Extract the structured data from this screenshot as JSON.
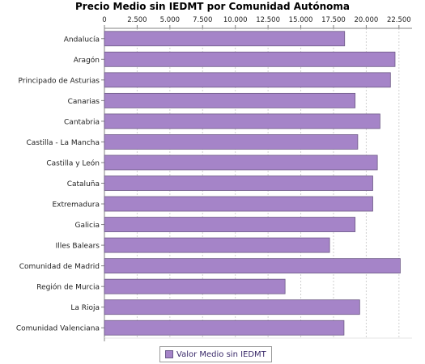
{
  "chart_data": {
    "type": "bar",
    "orientation": "horizontal",
    "title": "Precio Medio sin IEDMT por Comunidad Autónoma",
    "xlabel": "",
    "ylabel": "",
    "xlim": [
      0,
      23500
    ],
    "ticks": [
      "0",
      "2.500",
      "5.000",
      "7.500",
      "10.000",
      "12.500",
      "15.000",
      "17.500",
      "20.000",
      "22.500"
    ],
    "tick_values": [
      0,
      2500,
      5000,
      7500,
      10000,
      12500,
      15000,
      17500,
      20000,
      22500
    ],
    "tick_position": "top",
    "grid": "vertical-dashed",
    "legend_position": "bottom",
    "categories": [
      "Andalucía",
      "Aragón",
      "Principado de Asturias",
      "Canarias",
      "Cantabria",
      "Castilla - La Mancha",
      "Castilla y León",
      "Cataluña",
      "Extremadura",
      "Galicia",
      "Illes Balears",
      "Comunidad de Madrid",
      "Región de Murcia",
      "La Rioja",
      "Comunidad Valenciana"
    ],
    "series": [
      {
        "name": "Valor Medio sin IEDMT",
        "color": "#a584c8",
        "values": [
          18350,
          22200,
          21850,
          19150,
          21050,
          19350,
          20850,
          20500,
          20500,
          19150,
          17200,
          22600,
          13800,
          19500,
          18300
        ]
      }
    ]
  }
}
